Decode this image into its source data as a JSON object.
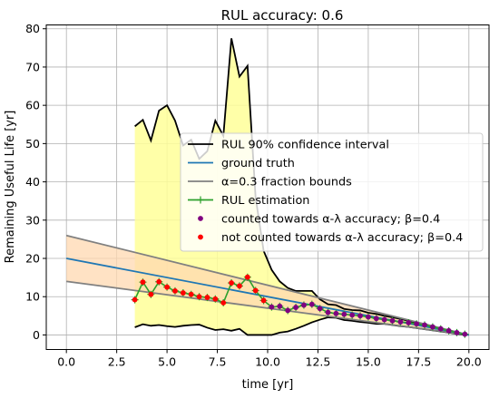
{
  "chart_data": {
    "type": "line",
    "title": "RUL accuracy: 0.6",
    "xlabel": "time [yr]",
    "ylabel": "Remaining Useful Life [yr]",
    "xlim": [
      -1.0,
      21.0
    ],
    "ylim": [
      -3.8,
      81.0
    ],
    "xticks": [
      "0.0",
      "2.5",
      "5.0",
      "7.5",
      "10.0",
      "12.5",
      "15.0",
      "17.5",
      "20.0"
    ],
    "yticks": [
      "0",
      "10",
      "20",
      "30",
      "40",
      "50",
      "60",
      "70",
      "80"
    ],
    "grid": true,
    "legend_position": "center-right",
    "legend": [
      "RUL 90% confidence interval",
      "ground truth",
      "α=0.3 fraction bounds",
      "RUL estimation",
      "counted towards α-λ accuracy; β=0.4",
      "not counted towards α-λ accuracy; β=0.4"
    ],
    "colors": {
      "confidence": "#000000",
      "confidence_fill": "#ffff99",
      "ground_truth": "#1f77b4",
      "bounds": "#808080",
      "bounds_fill": "#ffd8b0",
      "estimation": "#2ca02c",
      "counted": "#800080",
      "not_counted": "#ff0000"
    },
    "ground_truth": {
      "x": [
        0,
        20
      ],
      "y": [
        20,
        0
      ]
    },
    "alpha_bounds": {
      "upper": {
        "x": [
          0,
          20
        ],
        "y": [
          26,
          0
        ]
      },
      "lower": {
        "x": [
          0,
          20
        ],
        "y": [
          14,
          0
        ]
      }
    },
    "confidence_interval": {
      "x": [
        3.4,
        3.8,
        4.2,
        4.6,
        5.0,
        5.4,
        5.8,
        6.2,
        6.6,
        7.0,
        7.4,
        7.8,
        8.2,
        8.6,
        9.0,
        9.4,
        9.8,
        10.2,
        10.6,
        11.0,
        11.4,
        11.8,
        12.2,
        12.6,
        13.0,
        13.4,
        13.8,
        14.2,
        14.6,
        15.0,
        15.4,
        15.8,
        16.2,
        16.6,
        17.0,
        17.4,
        17.8,
        18.2,
        18.6,
        19.0,
        19.4,
        19.8
      ],
      "upper": [
        54.5,
        56.2,
        50.8,
        58.6,
        60.0,
        56.0,
        49.5,
        51.0,
        46.0,
        48.0,
        56.0,
        52.0,
        77.5,
        67.5,
        70.3,
        36.0,
        22.0,
        17.0,
        14.0,
        12.3,
        11.5,
        11.5,
        11.5,
        9.3,
        8.0,
        7.8,
        6.8,
        6.5,
        6.4,
        5.8,
        5.5,
        5.0,
        4.6,
        4.2,
        3.7,
        3.2,
        2.7,
        2.2,
        1.7,
        1.1,
        0.6,
        0.1
      ],
      "lower": [
        2.0,
        2.8,
        2.4,
        2.6,
        2.3,
        2.1,
        2.4,
        2.6,
        2.7,
        1.9,
        1.3,
        1.5,
        1.1,
        1.6,
        0.0,
        0.0,
        0.0,
        0.0,
        0.6,
        0.9,
        1.6,
        2.4,
        3.3,
        4.0,
        4.6,
        4.5,
        3.9,
        3.7,
        3.4,
        3.2,
        2.9,
        2.9,
        2.6,
        2.3,
        2.1,
        1.8,
        1.5,
        1.2,
        0.9,
        0.6,
        0.3,
        0.0
      ]
    },
    "rul_estimation": {
      "x": [
        3.4,
        3.8,
        4.2,
        4.6,
        5.0,
        5.4,
        5.8,
        6.2,
        6.6,
        7.0,
        7.4,
        7.8,
        8.2,
        8.6,
        9.0,
        9.4,
        9.8,
        10.2,
        10.6,
        11.0,
        11.4,
        11.8,
        12.2,
        12.6,
        13.0,
        13.4,
        13.8,
        14.2,
        14.6,
        15.0,
        15.4,
        15.8,
        16.2,
        16.6,
        17.0,
        17.4,
        17.8,
        18.2,
        18.6,
        19.0,
        19.4,
        19.8
      ],
      "y": [
        9.2,
        13.8,
        10.6,
        13.9,
        12.5,
        11.5,
        11.0,
        10.6,
        10.0,
        9.8,
        9.4,
        8.4,
        13.6,
        12.8,
        15.1,
        11.6,
        9.0,
        7.3,
        7.5,
        6.4,
        7.2,
        7.8,
        8.0,
        6.9,
        5.9,
        5.6,
        5.4,
        5.2,
        5.0,
        4.7,
        4.3,
        4.0,
        3.7,
        3.4,
        3.2,
        2.9,
        2.6,
        2.1,
        1.6,
        1.1,
        0.6,
        0.2
      ],
      "counted": [
        false,
        false,
        false,
        false,
        false,
        false,
        false,
        false,
        false,
        false,
        false,
        false,
        false,
        false,
        false,
        false,
        false,
        true,
        true,
        true,
        true,
        true,
        true,
        true,
        true,
        true,
        true,
        true,
        true,
        true,
        true,
        true,
        true,
        true,
        true,
        true,
        true,
        true,
        true,
        true,
        true,
        true
      ]
    }
  }
}
